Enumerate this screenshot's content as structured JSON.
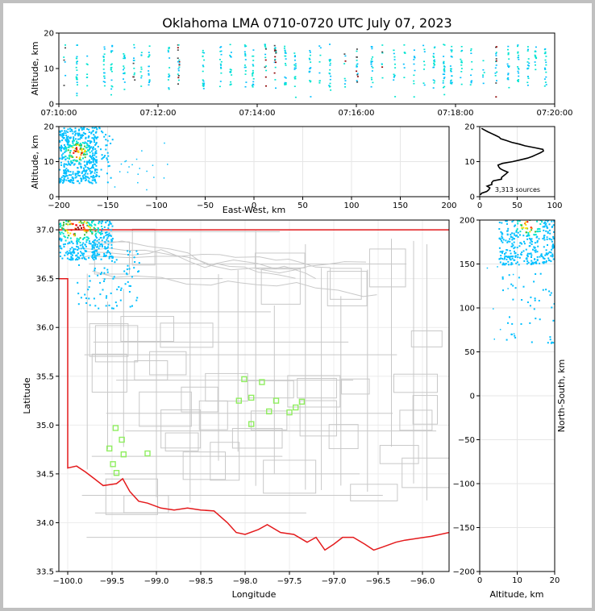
{
  "chart_data": [
    {
      "id": "time_height",
      "type": "scatter",
      "title": "Oklahoma LMA 0710-0720 UTC July 07, 2023",
      "ylabel": "Altitude, km",
      "xlabel": "",
      "xlim": [
        "07:10:00",
        "07:20:00"
      ],
      "ylim": [
        0,
        20
      ],
      "x_ticks": [
        "07:10:00",
        "07:12:00",
        "07:14:00",
        "07:16:00",
        "07:18:00",
        "07:20:00"
      ],
      "y_ticks": [
        "0",
        "10",
        "20"
      ],
      "source_columns_minutes": [
        0.1,
        0.35,
        0.55,
        0.9,
        1.05,
        1.3,
        1.5,
        1.65,
        1.8,
        2.2,
        2.4,
        2.9,
        3.25,
        3.45,
        3.75,
        3.9,
        4.15,
        4.35,
        4.55,
        4.75,
        5.05,
        5.25,
        5.45,
        5.75,
        6.0,
        6.3,
        6.5,
        6.75,
        6.95,
        7.15,
        7.35,
        7.55,
        7.75,
        7.9,
        8.1,
        8.3,
        8.55,
        8.8,
        9.05,
        9.25,
        9.45,
        9.6,
        9.8
      ],
      "grid": false
    },
    {
      "id": "east_west",
      "type": "scatter",
      "xlabel": "East-West, km",
      "ylabel": "Altitude, km",
      "xlim": [
        -200,
        200
      ],
      "ylim": [
        0,
        20
      ],
      "x_ticks": [
        "−200",
        "−150",
        "−100",
        "−50",
        "0",
        "50",
        "100",
        "150",
        "200"
      ],
      "y_ticks": [
        "0",
        "10",
        "20"
      ],
      "source_cluster": {
        "x_min": -200,
        "x_max": -145,
        "z_min": 4,
        "z_max": 20,
        "core_x": -182,
        "core_z": 13
      },
      "grid": true
    },
    {
      "id": "alt_histogram",
      "type": "line",
      "xlim": [
        0,
        100
      ],
      "ylim": [
        0,
        20
      ],
      "x_ticks": [
        "0",
        "50",
        "100"
      ],
      "y_ticks": [
        "0",
        "10",
        "20"
      ],
      "annotation": "3,313 sources",
      "profile": [
        {
          "alt": 0.5,
          "count": 2
        },
        {
          "alt": 1.5,
          "count": 6
        },
        {
          "alt": 2.5,
          "count": 10
        },
        {
          "alt": 3.5,
          "count": 15
        },
        {
          "alt": 4.5,
          "count": 22
        },
        {
          "alt": 5.5,
          "count": 30
        },
        {
          "alt": 6.5,
          "count": 36
        },
        {
          "alt": 7.5,
          "count": 30
        },
        {
          "alt": 8.5,
          "count": 25
        },
        {
          "alt": 9.5,
          "count": 28
        },
        {
          "alt": 10.5,
          "count": 55
        },
        {
          "alt": 11.5,
          "count": 68
        },
        {
          "alt": 12.5,
          "count": 80
        },
        {
          "alt": 13.5,
          "count": 82
        },
        {
          "alt": 14.5,
          "count": 58
        },
        {
          "alt": 15.5,
          "count": 42
        },
        {
          "alt": 16.5,
          "count": 32
        },
        {
          "alt": 17.5,
          "count": 22
        },
        {
          "alt": 18.5,
          "count": 10
        },
        {
          "alt": 19.5,
          "count": 4
        }
      ],
      "grid": true
    },
    {
      "id": "plan_view",
      "type": "scatter",
      "xlabel": "Longitude",
      "ylabel": "Latitude",
      "xlim": [
        -100.1,
        -95.7
      ],
      "ylim": [
        33.5,
        37.1
      ],
      "x_ticks": [
        "−100.0",
        "−99.5",
        "−99.0",
        "−98.5",
        "−98.0",
        "−97.5",
        "−97.0",
        "−96.5",
        "−96.0"
      ],
      "y_ticks": [
        "33.5",
        "34.0",
        "34.5",
        "35.0",
        "35.5",
        "36.0",
        "36.5",
        "37.0"
      ],
      "stations": [
        {
          "lon": -99.46,
          "lat": 34.97
        },
        {
          "lon": -99.39,
          "lat": 34.85
        },
        {
          "lon": -99.53,
          "lat": 34.76
        },
        {
          "lon": -99.37,
          "lat": 34.7
        },
        {
          "lon": -99.1,
          "lat": 34.71
        },
        {
          "lon": -99.49,
          "lat": 34.6
        },
        {
          "lon": -99.45,
          "lat": 34.51
        },
        {
          "lon": -98.01,
          "lat": 35.47
        },
        {
          "lon": -97.81,
          "lat": 35.44
        },
        {
          "lon": -97.93,
          "lat": 35.28
        },
        {
          "lon": -98.07,
          "lat": 35.25
        },
        {
          "lon": -97.65,
          "lat": 35.25
        },
        {
          "lon": -97.36,
          "lat": 35.24
        },
        {
          "lon": -97.43,
          "lat": 35.18
        },
        {
          "lon": -97.73,
          "lat": 35.14
        },
        {
          "lon": -97.5,
          "lat": 35.13
        },
        {
          "lon": -97.93,
          "lat": 35.01
        }
      ],
      "station_color": "#90ee60",
      "border_color": "#e41a1c",
      "county_color": "#c8c8c8",
      "grid": true
    },
    {
      "id": "north_south",
      "type": "scatter",
      "xlabel": "Altitude, km",
      "ylabel": "North-South, km",
      "xlim": [
        0,
        20
      ],
      "ylim": [
        -200,
        200
      ],
      "x_ticks": [
        "0",
        "10",
        "20"
      ],
      "y_ticks": [
        "−200",
        "−150",
        "−100",
        "−50",
        "0",
        "50",
        "100",
        "150",
        "200"
      ],
      "grid": true
    }
  ],
  "palette": [
    "#00bfff",
    "#00e5d0",
    "#40c040",
    "#ffe000",
    "#ff8000",
    "#ff0000",
    "#8b0000",
    "#0000cd"
  ]
}
